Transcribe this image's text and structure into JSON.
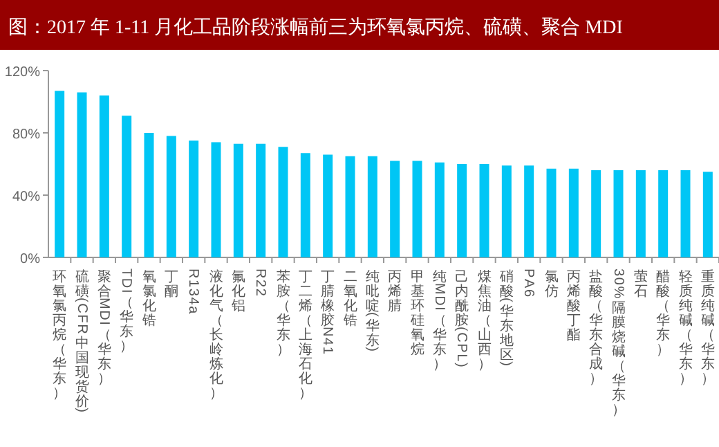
{
  "chart_data": {
    "type": "bar",
    "title": "图：2017 年 1-11 月化工品阶段涨幅前三为环氧氯丙烷、硫磺、聚合 MDI",
    "categories": [
      "环氧氯丙烷（华东）",
      "硫磺(CFR中国现货价)",
      "聚合MDI（华东）",
      "TDI（华东）",
      "氧氯化锆",
      "丁酮",
      "R134a",
      "液化气（长岭炼化）",
      "氟化铝",
      "R22",
      "苯胺（华东）",
      "丁二烯（上海石化）",
      "丁腈橡胶N41",
      "二氧化锆",
      "纯吡啶(华东)",
      "丙烯腈",
      "甲基环硅氧烷",
      "纯MDI（华东）",
      "己内酰胺(CPL)",
      "煤焦油（山西）",
      "硝酸(华东地区)",
      "PA6",
      "氯仿",
      "丙烯酸丁酯",
      "盐酸（华东合成）",
      "30%隔膜烧碱（华东）",
      "萤石",
      "醋酸（华东）",
      "轻质纯碱（华东）",
      "重质纯碱（华东）"
    ],
    "values": [
      107,
      106,
      104,
      91,
      80,
      78,
      75,
      74,
      73,
      73,
      71,
      67,
      66,
      65,
      65,
      62,
      62,
      61,
      60,
      60,
      59,
      59,
      57,
      57,
      56,
      56,
      56,
      56,
      56,
      55
    ],
    "color": "#00c6f5",
    "ylim": [
      0,
      120
    ],
    "yticks": [
      {
        "value": 0,
        "label": "0%"
      },
      {
        "value": 40,
        "label": "40%"
      },
      {
        "value": 80,
        "label": "80%"
      },
      {
        "value": 120,
        "label": "120%"
      }
    ],
    "grid": false
  }
}
